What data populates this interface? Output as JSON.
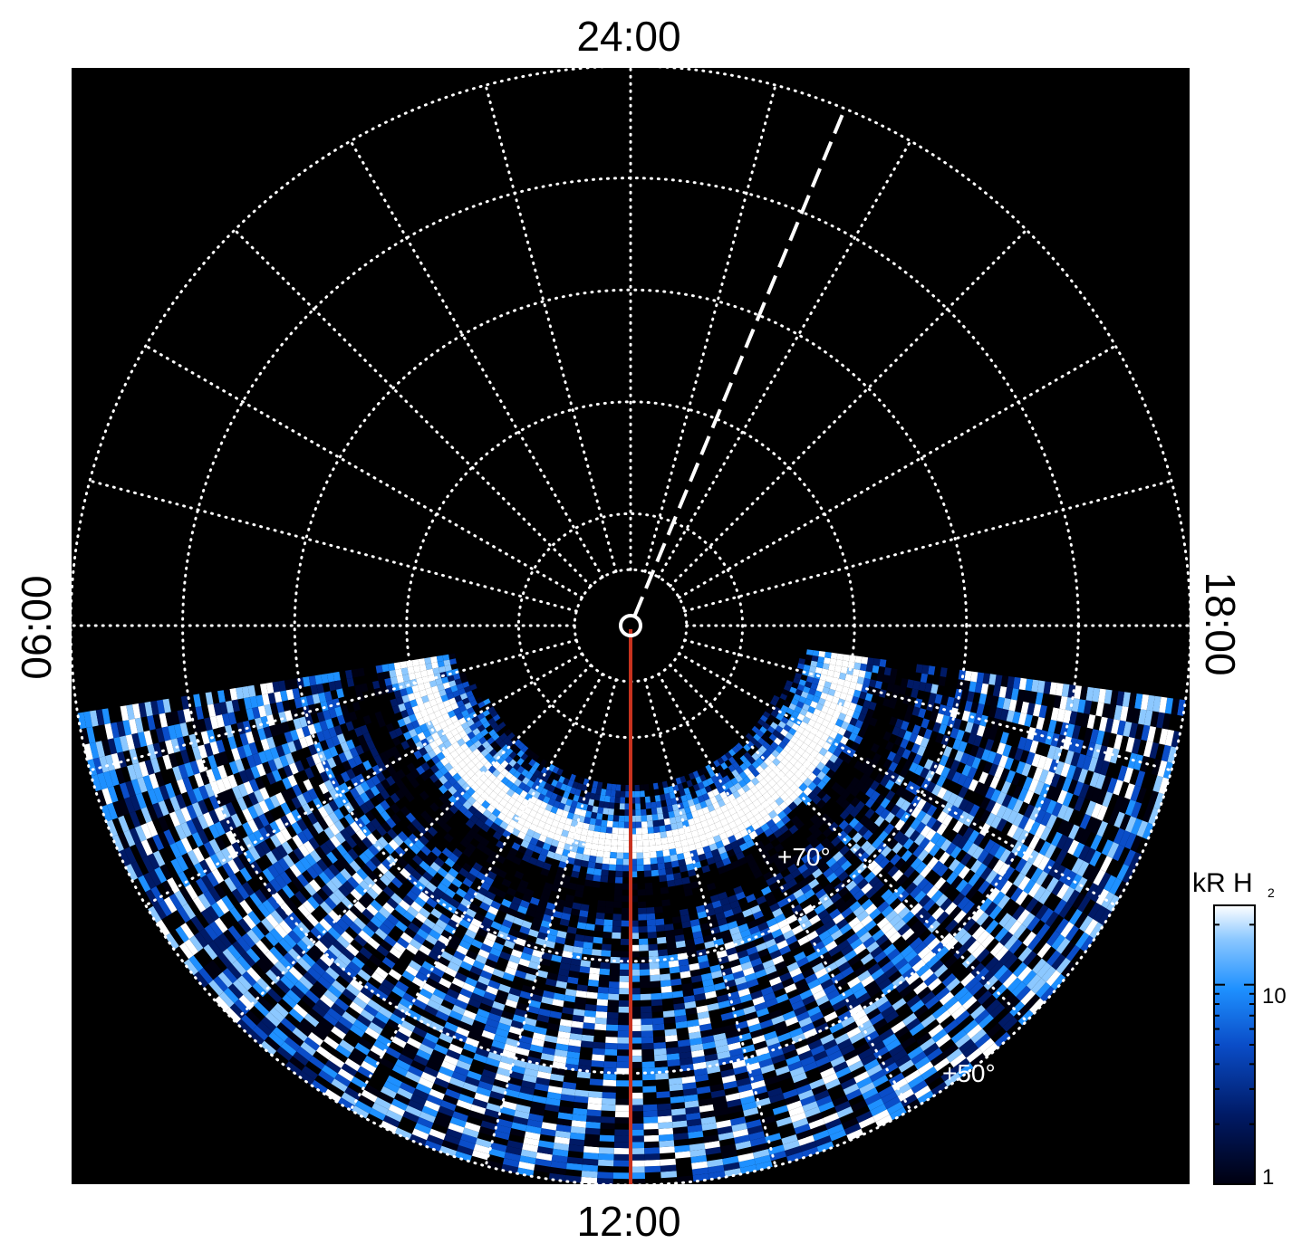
{
  "chart_data": {
    "type": "heatmap",
    "projection": "polar",
    "local_time_labels": {
      "top": "24:00",
      "left": "06:00",
      "right": "18:00",
      "bottom": "12:00"
    },
    "latitude_labels": [
      "+70°",
      "+50°"
    ],
    "latitude_circles_deg": [
      85,
      80,
      70,
      60,
      50,
      40
    ],
    "local_time_meridian_step_hours": 1,
    "grid": true,
    "dashed_line_local_time_hours": 22.5,
    "red_line_local_time_hours": 12,
    "colorbar": {
      "title": "kR H",
      "title_subscript": "2",
      "scale": "log",
      "range": [
        1,
        25
      ],
      "tick_labels": [
        "1",
        "10"
      ],
      "colors": [
        "#000010",
        "#001a66",
        "#0a4dc8",
        "#1e90ff",
        "#8cc8ff",
        "#ffffff"
      ],
      "position": "right"
    },
    "observed_region": "dayside, local times ~07:00 to ~17:00, latitudes below ~75°"
  }
}
